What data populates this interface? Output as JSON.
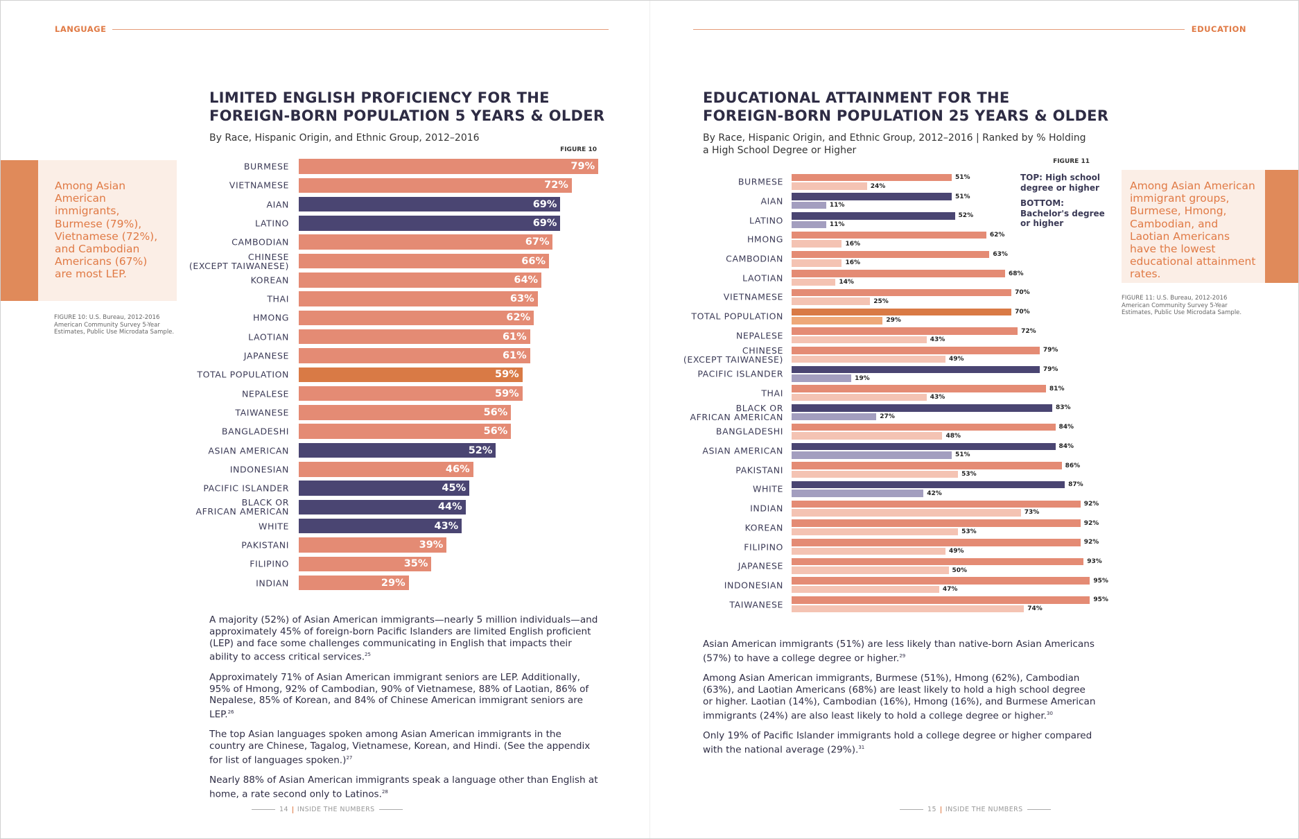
{
  "left": {
    "section": "LANGUAGE",
    "callout": "Among Asian American immigrants, Burmese (79%), Vietnamese (72%), and Cambodian Americans (67%) are most LEP.",
    "source": "FIGURE 10: U.S. Bureau, 2012-2016\nAmerican Community Survey 5-Year\nEstimates, Public Use Microdata Sample.",
    "paragraphs": [
      {
        "text": "A majority (52%) of Asian American immigrants—nearly 5 million individuals—and approximately 45% of foreign-born Pacific Islanders are limited English proficient (LEP) and face some challenges communicating in English that impacts their ability to access critical services.",
        "note": "25"
      },
      {
        "text": "Approximately 71% of Asian American immigrant seniors are LEP. Additionally, 95% of Hmong, 92% of Cambodian, 90% of Vietnamese, 88% of Laotian, 86% of Nepalese, 85% of Korean, and 84% of Chinese American immigrant seniors are LEP.",
        "note": "26"
      },
      {
        "text": "The top Asian languages spoken among Asian American immigrants in the country are Chinese, Tagalog, Vietnamese, Korean, and Hindi. (See the appendix for list of languages spoken.)",
        "note": "27"
      },
      {
        "text": "Nearly 88% of Asian American immigrants speak a language other than English at home, a rate second only to Latinos.",
        "note": "28"
      }
    ],
    "footer": {
      "page": "14",
      "label": "INSIDE THE NUMBERS"
    }
  },
  "right": {
    "section": "EDUCATION",
    "callout": "Among Asian American immigrant groups, Burmese, Hmong, Cambodian, and Laotian Americans have the lowest educational attainment rates.",
    "source": "FIGURE 11: U.S. Bureau, 2012-2016\nAmerican Community Survey 5-Year\nEstimates, Public Use Microdata Sample.",
    "paragraphs": [
      {
        "text": "Asian American immigrants (51%) are less likely than native-born Asian Americans (57%) to have a college degree or higher.",
        "note": "29"
      },
      {
        "text": "Among Asian American immigrants, Burmese (51%), Hmong (62%), Cambodian (63%), and Laotian Americans (68%) are least likely to hold a high school degree or higher. Laotian (14%), Cambodian (16%), Hmong (16%), and Burmese American immigrants (24%) are also least likely to hold a college degree or higher.",
        "note": "30"
      },
      {
        "text": "Only 19% of Pacific Islander immigrants hold a college degree or higher compared with the national average (29%).",
        "note": "31"
      }
    ],
    "footer": {
      "page": "15",
      "label": "INSIDE THE NUMBERS"
    }
  },
  "chart_data": [
    {
      "type": "bar",
      "orientation": "horizontal",
      "title": "LIMITED ENGLISH PROFICIENCY FOR THE\nFOREIGN-BORN POPULATION 5 YEARS & OLDER",
      "subtitle": "By Race, Hispanic Origin, and Ethnic Group, 2012–2016",
      "figure": "FIGURE 10",
      "categories": [
        "BURMESE",
        "VIETNAMESE",
        "AIAN",
        "LATINO",
        "CAMBODIAN",
        "CHINESE\n(EXCEPT TAIWANESE)",
        "KOREAN",
        "THAI",
        "HMONG",
        "LAOTIAN",
        "JAPANESE",
        "TOTAL POPULATION",
        "NEPALESE",
        "TAIWANESE",
        "BANGLADESHI",
        "ASIAN AMERICAN",
        "INDONESIAN",
        "PACIFIC ISLANDER",
        "BLACK OR\nAFRICAN AMERICAN",
        "WHITE",
        "PAKISTANI",
        "FILIPINO",
        "INDIAN"
      ],
      "values": [
        79,
        72,
        69,
        69,
        67,
        66,
        64,
        63,
        62,
        61,
        61,
        59,
        59,
        56,
        56,
        52,
        46,
        45,
        44,
        43,
        39,
        35,
        29
      ],
      "value_labels": [
        "79%",
        "72%",
        "69%",
        "69%",
        "67%",
        "66%",
        "64%",
        "63%",
        "62%",
        "61%",
        "61%",
        "59%",
        "59%",
        "56%",
        "56%",
        "52%",
        "46%",
        "45%",
        "44%",
        "43%",
        "39%",
        "35%",
        "29%"
      ],
      "colors": [
        "#e48b74",
        "#e48b74",
        "#4a4572",
        "#4a4572",
        "#e48b74",
        "#e48b74",
        "#e48b74",
        "#e48b74",
        "#e48b74",
        "#e48b74",
        "#e48b74",
        "#d97a45",
        "#e48b74",
        "#e48b74",
        "#e48b74",
        "#4a4572",
        "#e48b74",
        "#4a4572",
        "#4a4572",
        "#4a4572",
        "#e48b74",
        "#e48b74",
        "#e48b74"
      ]
    },
    {
      "type": "bar",
      "orientation": "horizontal",
      "title": "EDUCATIONAL ATTAINMENT FOR THE\nFOREIGN-BORN POPULATION 25 YEARS & OLDER",
      "subtitle": "By Race, Hispanic Origin, and Ethnic Group, 2012–2016 | Ranked by % Holding\na High School Degree or Higher",
      "figure": "FIGURE 11",
      "categories": [
        "BURMESE",
        "AIAN",
        "LATINO",
        "HMONG",
        "CAMBODIAN",
        "LAOTIAN",
        "VIETNAMESE",
        "TOTAL POPULATION",
        "NEPALESE",
        "CHINESE\n(EXCEPT TAIWANESE)",
        "PACIFIC ISLANDER",
        "THAI",
        "BLACK OR\nAFRICAN AMERICAN",
        "BANGLADESHI",
        "ASIAN AMERICAN",
        "PAKISTANI",
        "WHITE",
        "INDIAN",
        "KOREAN",
        "FILIPINO",
        "JAPANESE",
        "INDONESIAN",
        "TAIWANESE"
      ],
      "series": [
        {
          "name": "TOP: High school degree or higher",
          "values": [
            51,
            51,
            52,
            62,
            63,
            68,
            70,
            70,
            72,
            79,
            79,
            81,
            83,
            84,
            84,
            86,
            87,
            92,
            92,
            92,
            93,
            95,
            95
          ],
          "value_labels": [
            "51%",
            "51%",
            "52%",
            "62%",
            "63%",
            "68%",
            "70%",
            "70%",
            "72%",
            "79%",
            "79%",
            "81%",
            "83%",
            "84%",
            "84%",
            "86%",
            "87%",
            "92%",
            "92%",
            "92%",
            "93%",
            "95%",
            "95%"
          ],
          "colors": [
            "#e48b74",
            "#4a4572",
            "#4a4572",
            "#e48b74",
            "#e48b74",
            "#e48b74",
            "#e48b74",
            "#d97a45",
            "#e48b74",
            "#e48b74",
            "#4a4572",
            "#e48b74",
            "#4a4572",
            "#e48b74",
            "#4a4572",
            "#e48b74",
            "#4a4572",
            "#e48b74",
            "#e48b74",
            "#e48b74",
            "#e48b74",
            "#e48b74",
            "#e48b74"
          ]
        },
        {
          "name": "BOTTOM: Bachelor's degree or higher",
          "values": [
            24,
            11,
            11,
            16,
            16,
            14,
            25,
            29,
            43,
            49,
            19,
            43,
            27,
            48,
            51,
            53,
            42,
            73,
            53,
            49,
            50,
            47,
            74
          ],
          "value_labels": [
            "24%",
            "11%",
            "11%",
            "16%",
            "16%",
            "14%",
            "25%",
            "29%",
            "43%",
            "49%",
            "19%",
            "43%",
            "27%",
            "48%",
            "51%",
            "53%",
            "42%",
            "73%",
            "53%",
            "49%",
            "50%",
            "47%",
            "74%"
          ],
          "colors": [
            "#f4c3b3",
            "#a39ebf",
            "#a39ebf",
            "#f4c3b3",
            "#f4c3b3",
            "#f4c3b3",
            "#f4c3b3",
            "#eea878",
            "#f4c3b3",
            "#f4c3b3",
            "#a39ebf",
            "#f4c3b3",
            "#a39ebf",
            "#f4c3b3",
            "#a39ebf",
            "#f4c3b3",
            "#a39ebf",
            "#f4c3b3",
            "#f4c3b3",
            "#f4c3b3",
            "#f4c3b3",
            "#f4c3b3",
            "#f4c3b3"
          ]
        }
      ]
    }
  ]
}
